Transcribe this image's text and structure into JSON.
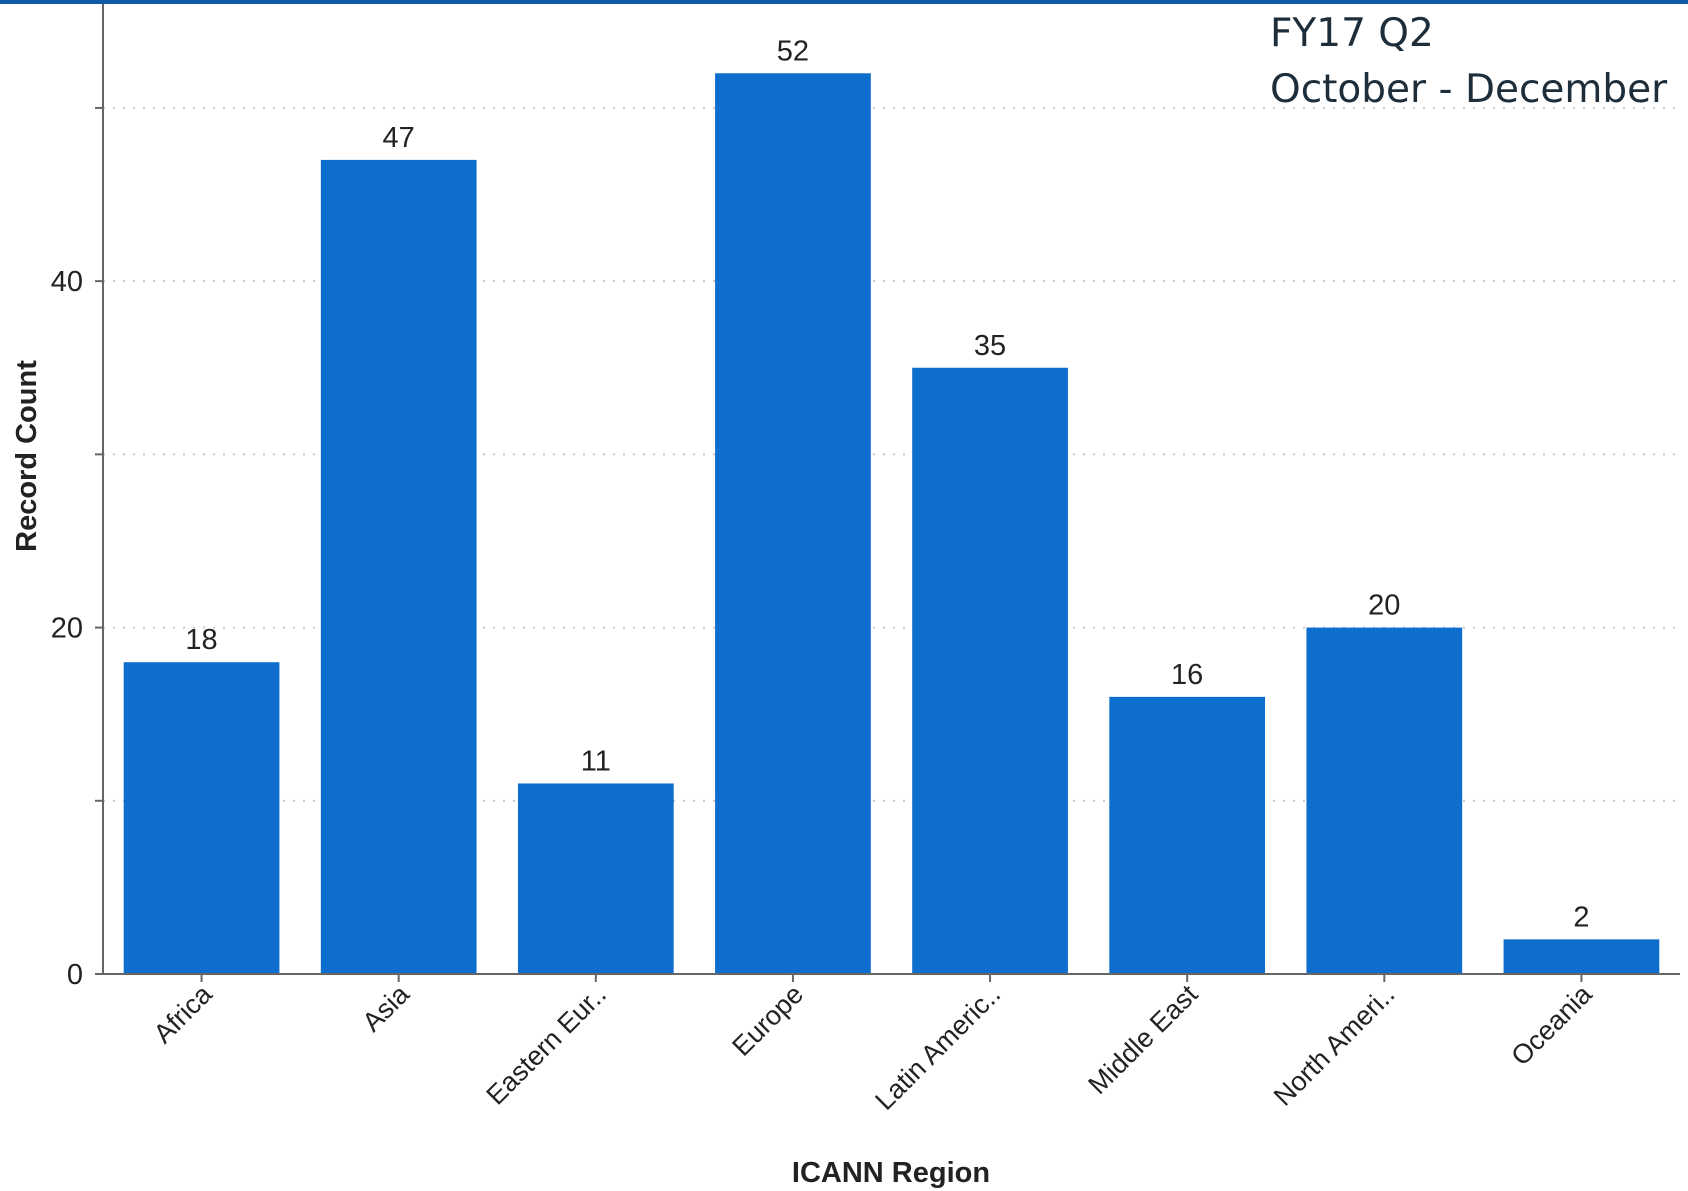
{
  "header": {
    "period_line1": "FY17 Q2",
    "period_line2": "October - December"
  },
  "colors": {
    "bar": "#0d6ecd",
    "top_bar": "#0f5aa6",
    "grid": "#c8c8c8",
    "axis": "#666666"
  },
  "chart_data": {
    "type": "bar",
    "categories": [
      "Africa",
      "Asia",
      "Eastern Eur..",
      "Europe",
      "Latin Americ..",
      "Middle East",
      "North Ameri..",
      "Oceania"
    ],
    "values": [
      18,
      47,
      11,
      52,
      35,
      16,
      20,
      2
    ],
    "xlabel": "ICANN Region",
    "ylabel": "Record Count",
    "ylim": [
      0,
      56
    ],
    "yticks": [
      0,
      20,
      40
    ],
    "grid_lines": [
      10,
      20,
      30,
      40,
      50
    ],
    "grid": true,
    "data_labels": true
  }
}
